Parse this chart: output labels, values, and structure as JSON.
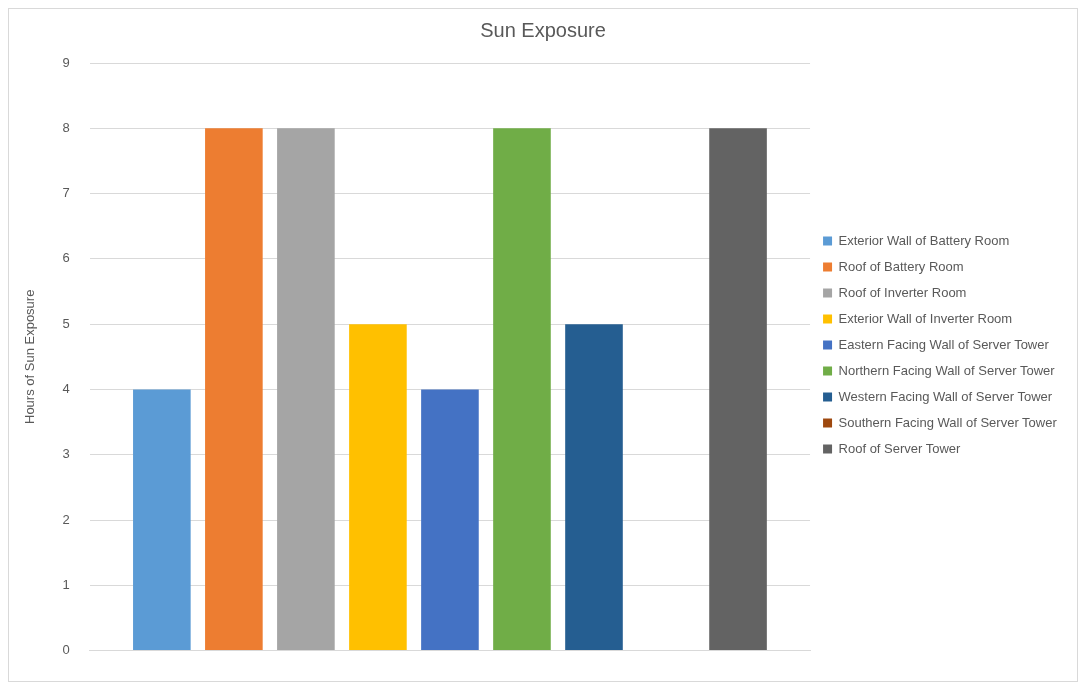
{
  "chart_data": {
    "type": "bar",
    "title": "Sun Exposure",
    "ylabel": "Hours of Sun Exposure",
    "categories": [
      null
    ],
    "series": [
      {
        "name": "Exterior Wall of Battery Room",
        "color": "#5b9bd5",
        "values": [
          4
        ]
      },
      {
        "name": "Roof of Battery Room",
        "color": "#ed7d31",
        "values": [
          8
        ]
      },
      {
        "name": "Roof of Inverter Room",
        "color": "#a5a5a5",
        "values": [
          8
        ]
      },
      {
        "name": "Exterior Wall of Inverter Room",
        "color": "#ffc000",
        "values": [
          5
        ]
      },
      {
        "name": "Eastern Facing Wall of Server Tower",
        "color": "#4472c4",
        "values": [
          4
        ]
      },
      {
        "name": "Northern Facing Wall of Server Tower",
        "color": "#70ad47",
        "values": [
          8
        ]
      },
      {
        "name": "Western Facing Wall of Server Tower",
        "color": "#255e91",
        "values": [
          5
        ]
      },
      {
        "name": "Southern Facing Wall of Server Tower",
        "color": "#9e480e",
        "values": [
          0
        ]
      },
      {
        "name": "Roof of Server Tower",
        "color": "#636363",
        "values": [
          8
        ]
      }
    ],
    "ylim": [
      0,
      9
    ],
    "yticks": [
      0,
      1,
      2,
      3,
      4,
      5,
      6,
      7,
      8,
      9
    ],
    "grid": "y",
    "legend": "right"
  }
}
